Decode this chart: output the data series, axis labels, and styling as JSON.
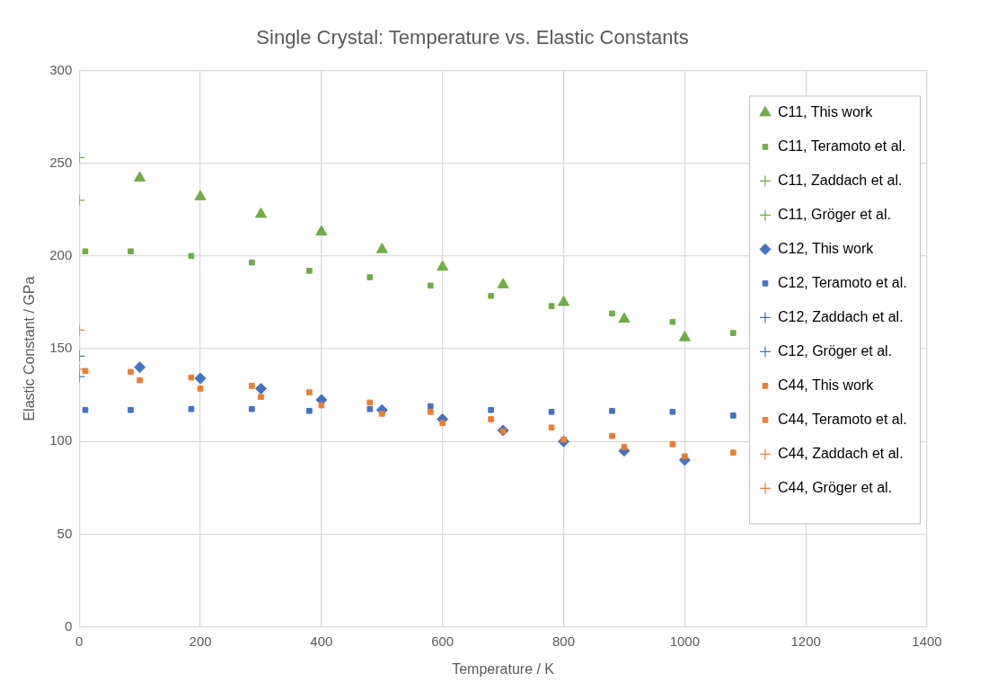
{
  "chart_data": {
    "type": "scatter",
    "title": "Single Crystal: Temperature vs. Elastic Constants",
    "xlabel": "Temperature / K",
    "ylabel": "Elastic Constant / GPa",
    "xlim": [
      0,
      1400
    ],
    "xticks": [
      0,
      200,
      400,
      600,
      800,
      1000,
      1200,
      1400
    ],
    "ylim": [
      0,
      300
    ],
    "yticks": [
      0,
      50,
      100,
      150,
      200,
      250,
      300
    ],
    "grid": true,
    "legend": "top right",
    "series": [
      {
        "name": "C11, This work",
        "color": "#70ad47",
        "marker": "triangle",
        "x": [
          100,
          200,
          300,
          400,
          500,
          600,
          700,
          800,
          900,
          1000
        ],
        "values": [
          242,
          232,
          222.5,
          213,
          203.5,
          194,
          184.5,
          175,
          166,
          156
        ]
      },
      {
        "name": "C11, Teramoto et al.",
        "color": "#70ad47",
        "marker": "square",
        "x": [
          10,
          85,
          185,
          285,
          380,
          480,
          580,
          680,
          780,
          880,
          980,
          1080
        ],
        "values": [
          202.5,
          202.5,
          200,
          196.5,
          192,
          188.5,
          184,
          178.5,
          173,
          169,
          164.5,
          158.5
        ]
      },
      {
        "name": "C11, Zaddach et al.",
        "color": "#70ad47",
        "marker": "cross",
        "x": [
          0
        ],
        "values": [
          230
        ]
      },
      {
        "name": "C11, Gröger et al.",
        "color": "#70ad47",
        "marker": "cross",
        "x": [
          0
        ],
        "values": [
          253
        ]
      },
      {
        "name": "C12, This work",
        "color": "#4472c4",
        "marker": "diamond",
        "x": [
          100,
          200,
          300,
          400,
          500,
          600,
          700,
          800,
          900,
          1000
        ],
        "values": [
          140,
          134,
          128.5,
          122.5,
          117,
          112,
          106,
          100,
          95,
          90
        ]
      },
      {
        "name": "C12, Teramoto et al.",
        "color": "#4472c4",
        "marker": "square",
        "x": [
          10,
          85,
          185,
          285,
          380,
          480,
          580,
          680,
          780,
          880,
          980,
          1080
        ],
        "values": [
          117,
          117,
          117.5,
          117.5,
          116.5,
          117.5,
          119,
          117,
          116,
          116.5,
          116,
          114
        ]
      },
      {
        "name": "C12, Zaddach et al.",
        "color": "#4472c4",
        "marker": "cross",
        "x": [
          0
        ],
        "values": [
          135
        ]
      },
      {
        "name": "C12, Gröger et al.",
        "color": "#4472c4",
        "marker": "cross",
        "x": [
          0
        ],
        "values": [
          146
        ]
      },
      {
        "name": "C44, This work",
        "color": "#ed7d31",
        "marker": "square",
        "x": [
          100,
          200,
          300,
          400,
          500,
          600,
          700,
          800,
          900,
          1000
        ],
        "values": [
          133,
          128.5,
          124,
          119.5,
          115,
          110,
          105.5,
          101,
          97,
          92
        ]
      },
      {
        "name": "C44, Teramoto et al.",
        "color": "#ed7d31",
        "marker": "square",
        "x": [
          10,
          85,
          185,
          285,
          380,
          480,
          580,
          680,
          780,
          880,
          980,
          1080
        ],
        "values": [
          138,
          137.5,
          134.5,
          130,
          126.5,
          121,
          116,
          112,
          107.5,
          103,
          98.5,
          94
        ]
      },
      {
        "name": "C44, Zaddach et al.",
        "color": "#ed7d31",
        "marker": "cross",
        "x": [
          0
        ],
        "values": [
          160
        ]
      },
      {
        "name": "C44, Gröger et al.",
        "color": "#ed7d31",
        "marker": "cross",
        "x": [
          0
        ],
        "values": [
          139
        ]
      }
    ]
  }
}
